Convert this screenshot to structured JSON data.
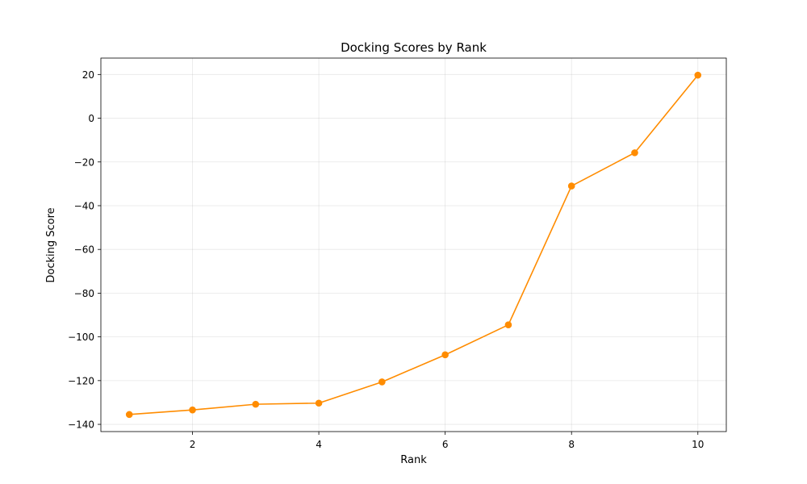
{
  "chart_data": {
    "type": "line",
    "title": "Docking Scores by Rank",
    "xlabel": "Rank",
    "ylabel": "Docking Score",
    "xlim": [
      0.55,
      10.45
    ],
    "ylim": [
      -143.3,
      27.5
    ],
    "xticks": [
      2,
      4,
      6,
      8,
      10
    ],
    "yticks": [
      -140,
      -120,
      -100,
      -80,
      -60,
      -40,
      -20,
      0,
      20
    ],
    "ytick_labels": [
      "−140",
      "−120",
      "−100",
      "−80",
      "−60",
      "−40",
      "−20",
      "0",
      "20"
    ],
    "grid": true,
    "series": [
      {
        "color": "#ff8c00",
        "marker": "circle",
        "x": [
          1,
          2,
          3,
          4,
          5,
          6,
          7,
          8,
          9,
          10
        ],
        "y": [
          -135.5,
          -133.4,
          -130.8,
          -130.3,
          -120.6,
          -108.2,
          -94.5,
          -31.0,
          -15.8,
          19.7
        ]
      }
    ]
  }
}
